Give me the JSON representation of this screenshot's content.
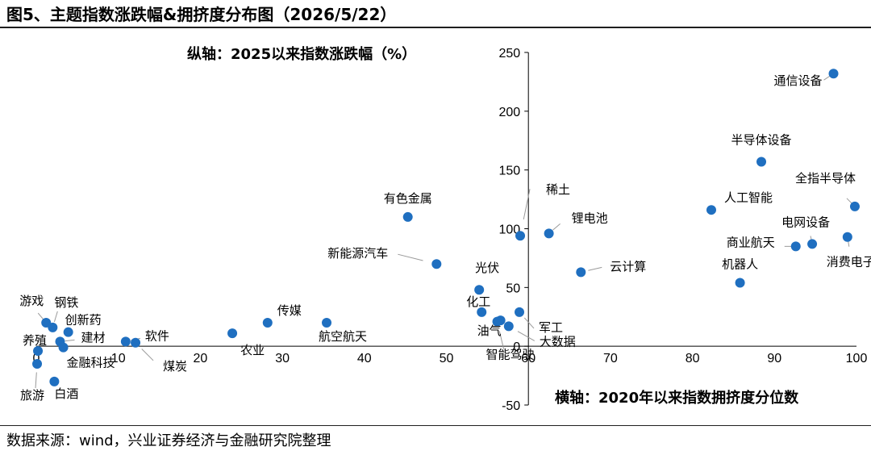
{
  "figure": {
    "title": "图5、主题指数涨跌幅&拥挤度分布图（2026/5/22）",
    "source": "数据来源：wind，兴业证券经济与金融研究院整理"
  },
  "colors": {
    "point": "#1f6fc0",
    "axis": "#000000",
    "leader": "#999999"
  },
  "chart_data": {
    "type": "scatter",
    "xlabel": "横轴：2020年以来指数拥挤度分位数",
    "ylabel": "纵轴：2025以来指数涨跌幅（%）",
    "xlim": [
      0,
      100
    ],
    "ylim": [
      -50,
      250
    ],
    "x_ticks": [
      "0",
      "10",
      "20",
      "30",
      "40",
      "50",
      "60",
      "70",
      "80",
      "90",
      "100"
    ],
    "y_ticks": [
      "-50",
      "0",
      "50",
      "100",
      "150",
      "200",
      "250"
    ],
    "grid": false,
    "points": [
      {
        "name": "通信设备",
        "x": 97.2,
        "y": 232
      },
      {
        "name": "半导体设备",
        "x": 88.4,
        "y": 157
      },
      {
        "name": "全指半导体",
        "x": 99.8,
        "y": 119
      },
      {
        "name": "人工智能",
        "x": 82.3,
        "y": 116
      },
      {
        "name": "稀土",
        "x": 59.0,
        "y": 94
      },
      {
        "name": "锂电池",
        "x": 62.5,
        "y": 96
      },
      {
        "name": "有色金属",
        "x": 45.3,
        "y": 110
      },
      {
        "name": "新能源汽车",
        "x": 48.8,
        "y": 70
      },
      {
        "name": "电网设备",
        "x": 94.6,
        "y": 87
      },
      {
        "name": "商业航天",
        "x": 92.6,
        "y": 85
      },
      {
        "name": "消费电子",
        "x": 98.9,
        "y": 93
      },
      {
        "name": "云计算",
        "x": 66.4,
        "y": 63
      },
      {
        "name": "机器人",
        "x": 85.8,
        "y": 54
      },
      {
        "name": "光伏",
        "x": 54.0,
        "y": 48
      },
      {
        "name": "化工",
        "x": 54.3,
        "y": 29
      },
      {
        "name": "军工",
        "x": 58.9,
        "y": 29
      },
      {
        "name": "油气",
        "x": 56.6,
        "y": 22
      },
      {
        "name": "智能驾驶",
        "x": 56.2,
        "y": 21
      },
      {
        "name": "大数据",
        "x": 57.6,
        "y": 17
      },
      {
        "name": "传媒",
        "x": 28.2,
        "y": 20
      },
      {
        "name": "航空航天",
        "x": 35.4,
        "y": 20
      },
      {
        "name": "农业",
        "x": 23.9,
        "y": 11
      },
      {
        "name": "软件",
        "x": 10.9,
        "y": 4
      },
      {
        "name": "煤炭",
        "x": 12.1,
        "y": 3
      },
      {
        "name": "游戏",
        "x": 1.2,
        "y": 20
      },
      {
        "name": "钢铁",
        "x": 2.0,
        "y": 16
      },
      {
        "name": "创新药",
        "x": 3.9,
        "y": 12
      },
      {
        "name": "养殖",
        "x": 0.2,
        "y": -4
      },
      {
        "name": "建材",
        "x": 2.9,
        "y": 4
      },
      {
        "name": "金融科技",
        "x": 3.3,
        "y": -1
      },
      {
        "name": "旅游",
        "x": 0.1,
        "y": -15
      },
      {
        "name": "白酒",
        "x": 2.2,
        "y": -30
      }
    ]
  }
}
